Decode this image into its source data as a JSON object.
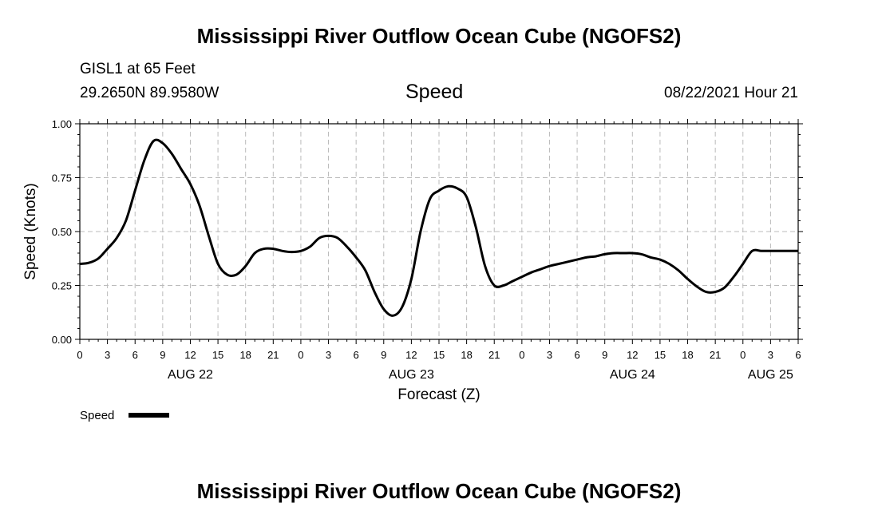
{
  "header": {
    "title": "Mississippi River Outflow Ocean Cube (NGOFS2)",
    "station": "GISL1 at 65 Feet",
    "coords": "29.2650N  89.9580W",
    "variable": "Speed",
    "datetime": "08/22/2021 Hour 21"
  },
  "footer": {
    "title": "Mississippi River Outflow Ocean Cube (NGOFS2)"
  },
  "legend": {
    "label": "Speed"
  },
  "chart_data": {
    "type": "line",
    "title": "Speed",
    "xlabel": "Forecast (Z)",
    "ylabel": "Speed (Knots)",
    "ylim": [
      0,
      1
    ],
    "xlim": [
      0,
      78
    ],
    "x_unit": "hours since AUG 22 00Z",
    "grid": true,
    "y_ticks": [
      "0.00",
      "0.25",
      "0.50",
      "0.75",
      "1.00"
    ],
    "x_tick_labels": [
      "0",
      "3",
      "6",
      "9",
      "12",
      "15",
      "18",
      "21",
      "0",
      "3",
      "6",
      "9",
      "12",
      "15",
      "18",
      "21",
      "0",
      "3",
      "6",
      "9",
      "12",
      "15",
      "18",
      "21",
      "0",
      "3",
      "6"
    ],
    "date_labels": [
      {
        "label": "AUG 22",
        "hour": 12
      },
      {
        "label": "AUG 23",
        "hour": 36
      },
      {
        "label": "AUG 24",
        "hour": 60
      },
      {
        "label": "AUG 25",
        "hour": 75
      }
    ],
    "series": [
      {
        "name": "Speed",
        "x": [
          0,
          1,
          2,
          3,
          4,
          5,
          6,
          7,
          8,
          9,
          10,
          11,
          12,
          13,
          14,
          15,
          16,
          17,
          18,
          19,
          20,
          21,
          22,
          23,
          24,
          25,
          26,
          27,
          28,
          29,
          30,
          31,
          32,
          33,
          34,
          35,
          36,
          37,
          38,
          39,
          40,
          41,
          42,
          43,
          44,
          45,
          46,
          47,
          48,
          49,
          50,
          51,
          52,
          53,
          54,
          55,
          56,
          57,
          58,
          59,
          60,
          61,
          62,
          63,
          64,
          65,
          66,
          67,
          68,
          69,
          70,
          71,
          72,
          73,
          74,
          75,
          76,
          77,
          78
        ],
        "values": [
          0.35,
          0.355,
          0.375,
          0.42,
          0.47,
          0.55,
          0.69,
          0.83,
          0.92,
          0.91,
          0.86,
          0.79,
          0.72,
          0.62,
          0.48,
          0.35,
          0.3,
          0.3,
          0.34,
          0.4,
          0.42,
          0.42,
          0.41,
          0.405,
          0.41,
          0.43,
          0.47,
          0.48,
          0.47,
          0.43,
          0.38,
          0.32,
          0.22,
          0.14,
          0.11,
          0.15,
          0.28,
          0.5,
          0.65,
          0.69,
          0.71,
          0.7,
          0.66,
          0.52,
          0.34,
          0.25,
          0.25,
          0.27,
          0.29,
          0.31,
          0.325,
          0.34,
          0.35,
          0.36,
          0.37,
          0.38,
          0.385,
          0.395,
          0.4,
          0.4,
          0.4,
          0.395,
          0.38,
          0.37,
          0.35,
          0.32,
          0.28,
          0.245,
          0.22,
          0.22,
          0.24,
          0.29,
          0.35,
          0.41,
          0.41,
          0.41,
          0.41,
          0.41,
          0.41
        ]
      }
    ]
  }
}
